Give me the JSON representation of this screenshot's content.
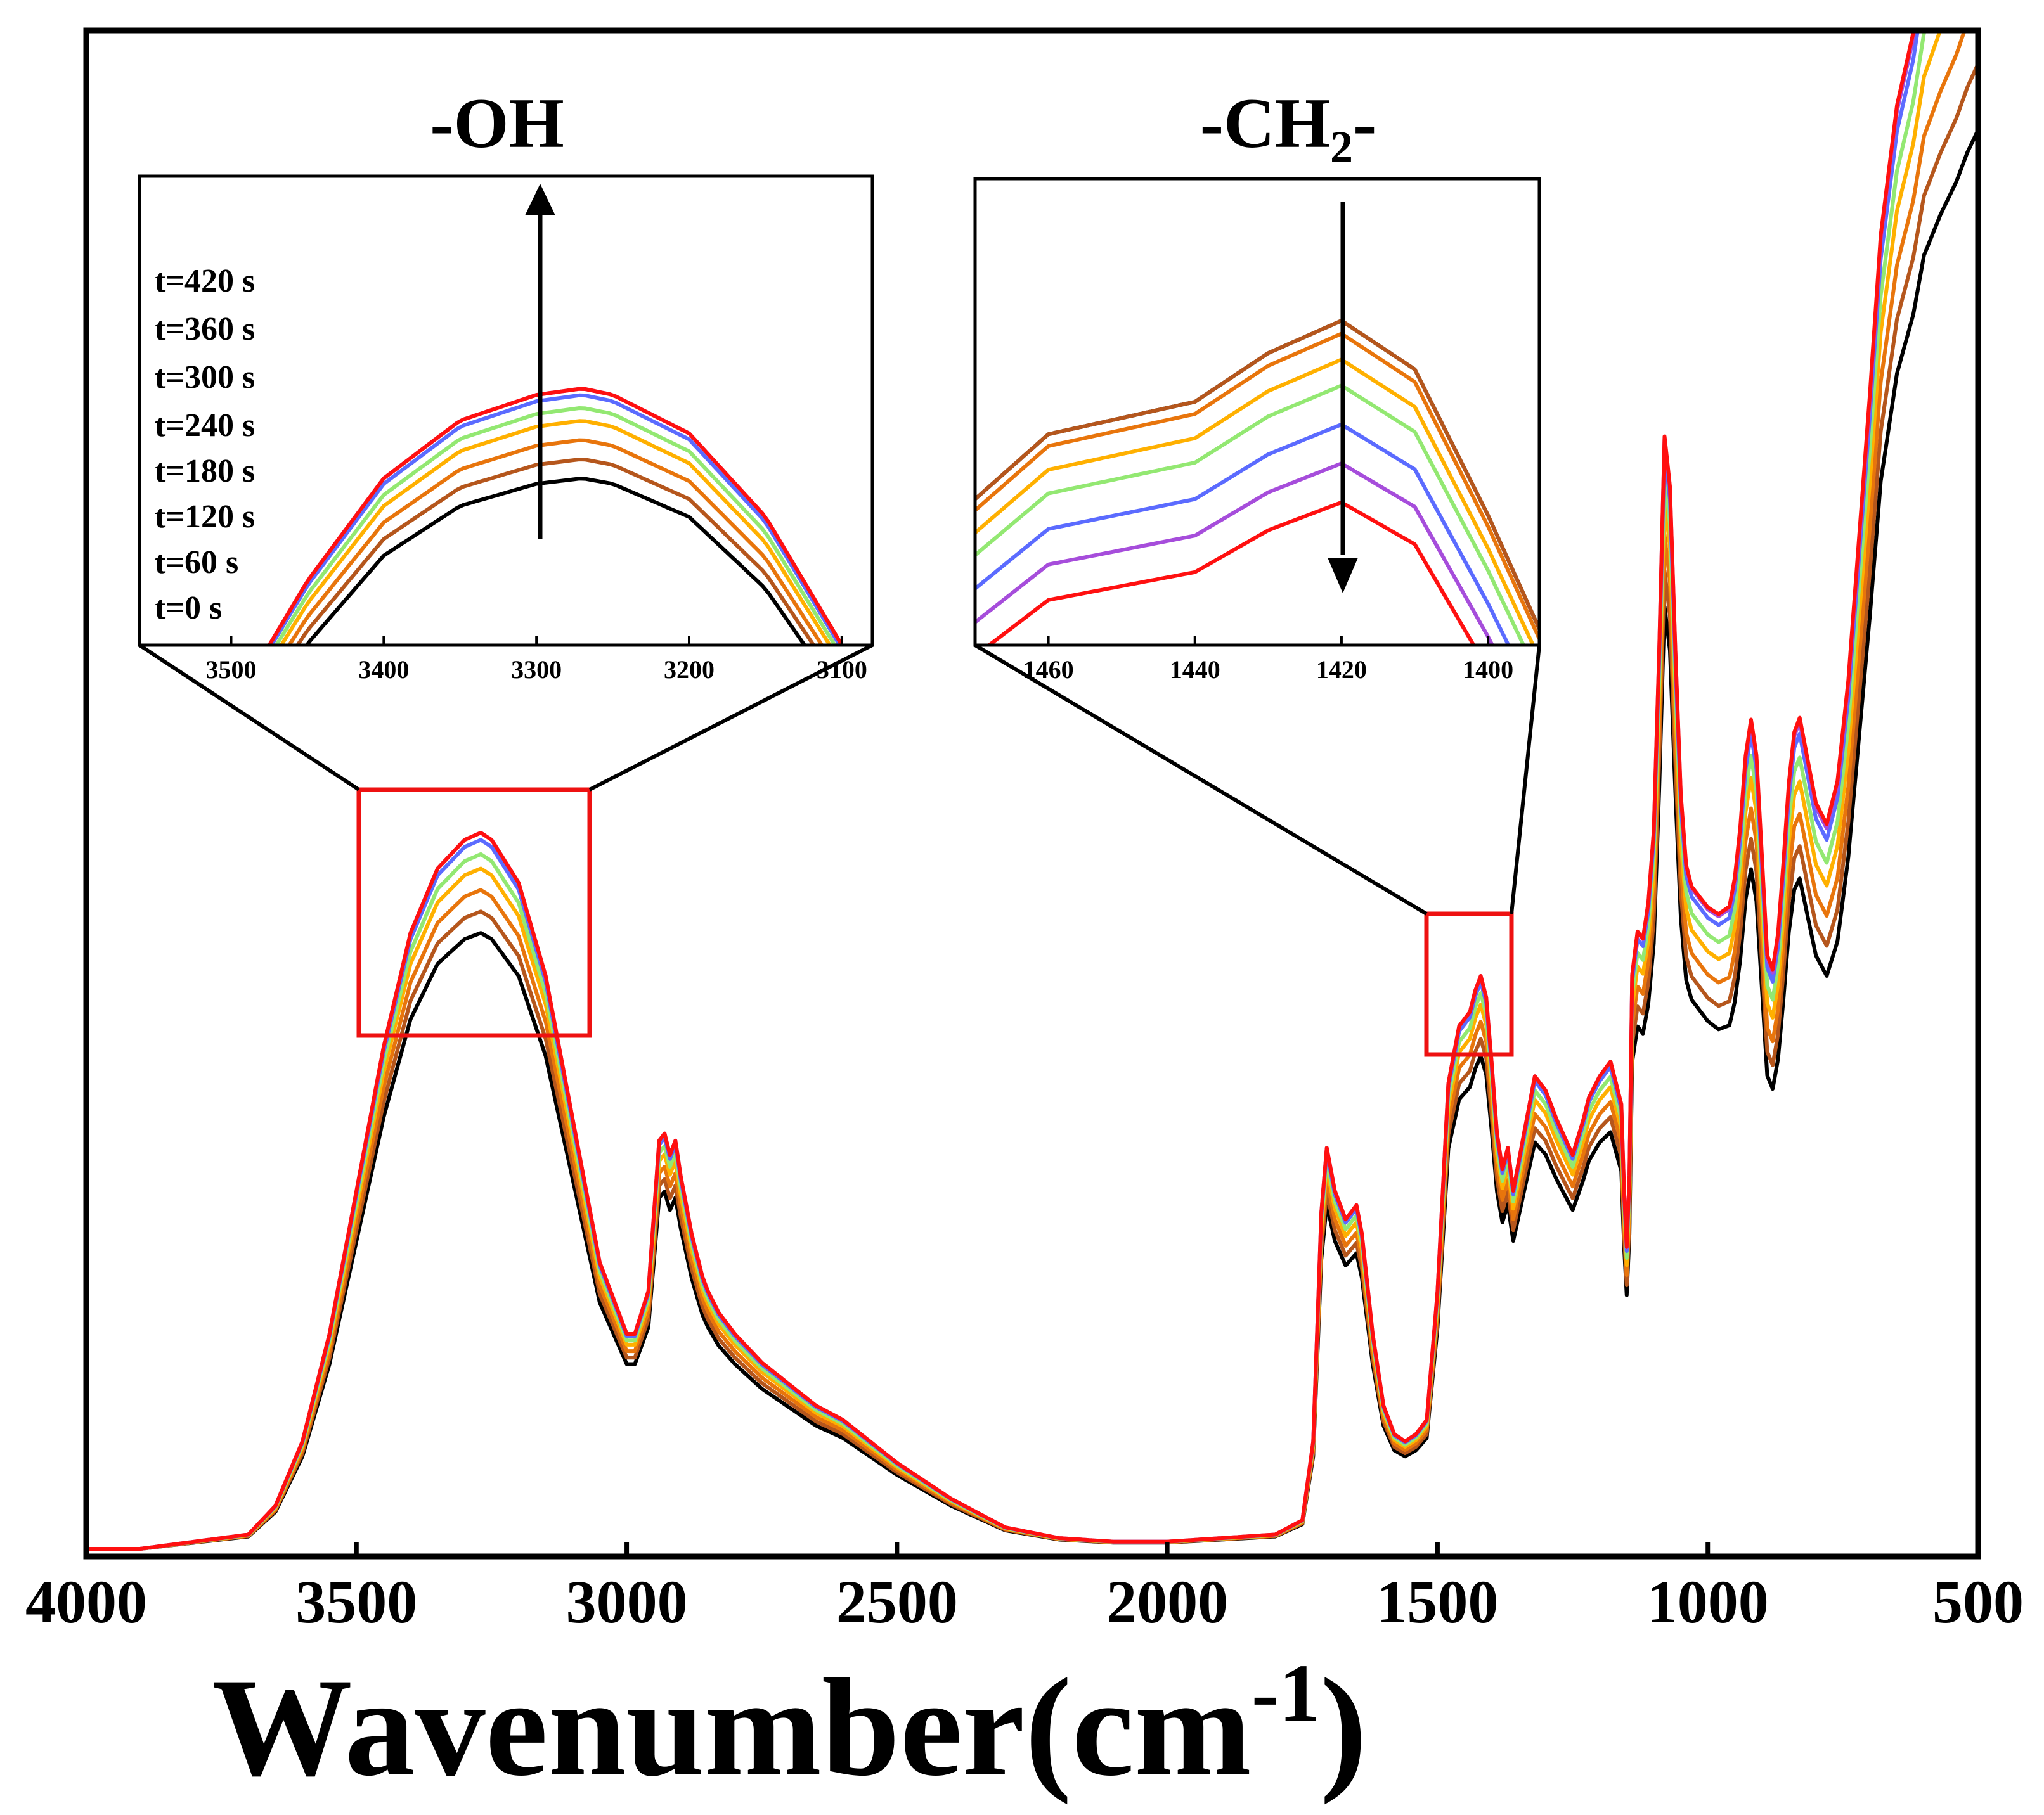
{
  "chart_data": {
    "type": "line",
    "title": "",
    "xlabel": "Wavenumber(cm",
    "xlabel_sup": "-1",
    "xlabel_tail": ")",
    "ylabel": "",
    "xlim": [
      4000,
      500
    ],
    "x_reversed": true,
    "x_ticks": [
      "4000",
      "3500",
      "3000",
      "2500",
      "2000",
      "1500",
      "1000",
      "500"
    ],
    "y_axis_labels": "none",
    "series": [
      {
        "name": "t=0 s",
        "color": "#000000",
        "scale": 0.86,
        "tail": -0.1
      },
      {
        "name": "t=60 s",
        "color": "#b5561c",
        "scale": 0.89,
        "tail": -0.08
      },
      {
        "name": "t=120 s",
        "color": "#e8750c",
        "scale": 0.92,
        "tail": -0.06
      },
      {
        "name": "t=180 s",
        "color": "#ffb000",
        "scale": 0.95,
        "tail": -0.04
      },
      {
        "name": "t=240 s",
        "color": "#93e872",
        "scale": 0.97,
        "tail": -0.02
      },
      {
        "name": "t=300 s",
        "color": "#5b6bff",
        "scale": 0.99,
        "tail": 0.0
      },
      {
        "name": "t=360 s",
        "color": "#a64ddb",
        "scale": 1.0,
        "tail": 0.01
      },
      {
        "name": "t=420 s",
        "color": "#ff1010",
        "scale": 1.0,
        "tail": 0.02
      }
    ],
    "spectrum_profile": {
      "x": [
        4000,
        3900,
        3800,
        3700,
        3650,
        3600,
        3550,
        3500,
        3450,
        3400,
        3350,
        3300,
        3270,
        3250,
        3200,
        3150,
        3100,
        3050,
        3000,
        2985,
        2960,
        2940,
        2930,
        2920,
        2910,
        2900,
        2880,
        2860,
        2850,
        2830,
        2800,
        2750,
        2700,
        2650,
        2600,
        2500,
        2400,
        2300,
        2200,
        2100,
        2000,
        1900,
        1800,
        1750,
        1730,
        1715,
        1705,
        1690,
        1670,
        1650,
        1640,
        1620,
        1600,
        1580,
        1560,
        1540,
        1520,
        1500,
        1480,
        1460,
        1440,
        1430,
        1420,
        1410,
        1400,
        1390,
        1380,
        1370,
        1360,
        1340,
        1320,
        1300,
        1280,
        1250,
        1230,
        1220,
        1200,
        1180,
        1160,
        1155,
        1150,
        1145,
        1140,
        1130,
        1120,
        1110,
        1100,
        1090,
        1080,
        1070,
        1060,
        1050,
        1040,
        1030,
        1020,
        1000,
        980,
        960,
        950,
        940,
        930,
        920,
        910,
        900,
        890,
        880,
        870,
        860,
        850,
        840,
        830,
        820,
        800,
        780,
        760,
        740,
        720,
        700,
        680,
        650,
        620,
        600,
        570,
        540,
        520,
        500
      ],
      "y": [
        0.0,
        0.0,
        0.01,
        0.02,
        0.06,
        0.15,
        0.3,
        0.5,
        0.7,
        0.86,
        0.95,
        0.99,
        1.0,
        0.99,
        0.93,
        0.8,
        0.6,
        0.4,
        0.3,
        0.3,
        0.36,
        0.57,
        0.58,
        0.55,
        0.57,
        0.52,
        0.44,
        0.38,
        0.36,
        0.33,
        0.3,
        0.26,
        0.23,
        0.2,
        0.18,
        0.12,
        0.07,
        0.03,
        0.015,
        0.01,
        0.01,
        0.015,
        0.02,
        0.04,
        0.15,
        0.47,
        0.56,
        0.5,
        0.46,
        0.48,
        0.44,
        0.3,
        0.2,
        0.16,
        0.15,
        0.16,
        0.18,
        0.36,
        0.65,
        0.73,
        0.75,
        0.78,
        0.8,
        0.77,
        0.68,
        0.58,
        0.53,
        0.56,
        0.5,
        0.58,
        0.66,
        0.64,
        0.6,
        0.55,
        0.6,
        0.63,
        0.66,
        0.68,
        0.62,
        0.5,
        0.42,
        0.52,
        0.8,
        0.86,
        0.85,
        0.9,
        1.0,
        1.25,
        1.55,
        1.48,
        1.25,
        1.05,
        0.95,
        0.92,
        0.91,
        0.89,
        0.88,
        0.89,
        0.93,
        1.0,
        1.1,
        1.15,
        1.1,
        0.96,
        0.82,
        0.8,
        0.85,
        0.95,
        1.06,
        1.13,
        1.15,
        1.11,
        1.03,
        1.0,
        1.06,
        1.2,
        1.4,
        1.6,
        1.82,
        2.0,
        2.1,
        2.2,
        2.27,
        2.33,
        2.38,
        2.42
      ]
    },
    "insets": [
      {
        "title": "-OH",
        "xlim": [
          3560,
          3080
        ],
        "x_ticks": [
          "3500",
          "3400",
          "3300",
          "3200",
          "3100"
        ],
        "arrow": "up",
        "legend": [
          "t=420 s",
          "t=360 s",
          "t=300 s",
          "t=240 s",
          "t=180 s",
          "t=120 s",
          "t=60 s",
          "t=0 s"
        ],
        "zoom_range": [
          3500,
          3060
        ]
      },
      {
        "title_main": "-CH",
        "title_sub": "2",
        "title_tail": "-",
        "xlim": [
          1470,
          1393
        ],
        "x_ticks": [
          "1460",
          "1440",
          "1420",
          "1400"
        ],
        "arrow": "down",
        "zoom_range": [
          1515,
          1365
        ]
      }
    ]
  }
}
